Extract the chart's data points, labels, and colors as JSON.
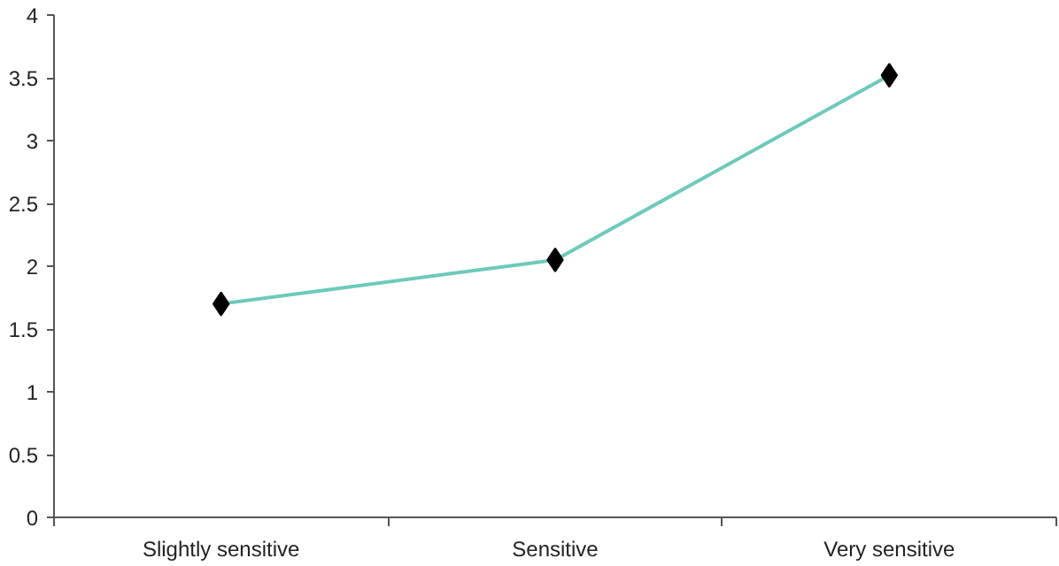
{
  "chart_data": {
    "type": "line",
    "categories": [
      "Slightly sensitive",
      "Sensitive",
      "Very sensitive"
    ],
    "series": [
      {
        "color": "#6ccabb",
        "values": [
          1.7,
          2.05,
          3.52
        ]
      }
    ],
    "ylim": [
      0,
      4
    ],
    "yticks": [
      0,
      0.5,
      1,
      1.5,
      2,
      2.5,
      3,
      3.5,
      4
    ],
    "marker": "diamond",
    "grid": false
  }
}
